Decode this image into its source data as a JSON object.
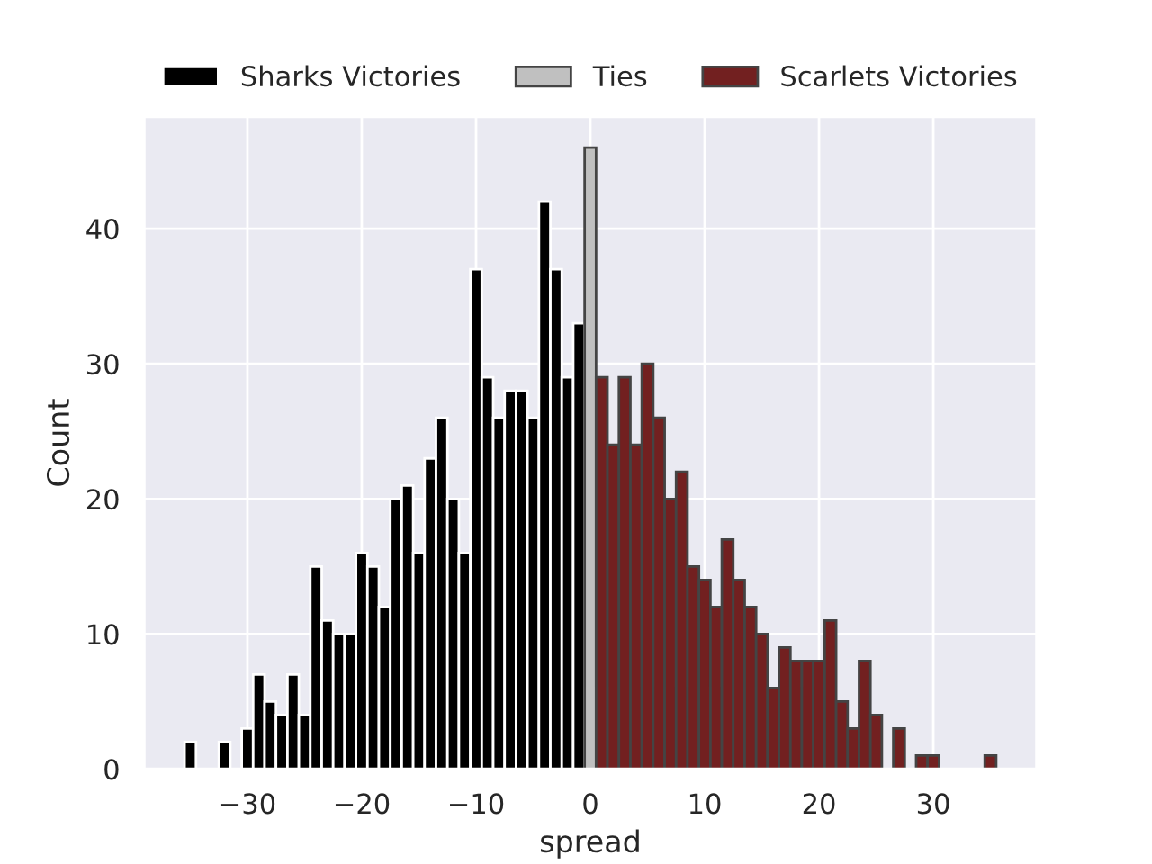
{
  "chart_data": {
    "type": "histogram",
    "xlabel": "spread",
    "ylabel": "Count",
    "bins": [
      -35.5,
      -34.5,
      -33.5,
      -32.5,
      -31.5,
      -30.5,
      -29.5,
      -28.5,
      -27.5,
      -26.5,
      -25.5,
      -24.5,
      -23.5,
      -22.5,
      -21.5,
      -20.5,
      -19.5,
      -18.5,
      -17.5,
      -16.5,
      -15.5,
      -14.5,
      -13.5,
      -12.5,
      -11.5,
      -10.5,
      -9.5,
      -8.5,
      -7.5,
      -6.5,
      -5.5,
      -4.5,
      -3.5,
      -2.5,
      -1.5,
      -0.5,
      0.5,
      1.5,
      2.5,
      3.5,
      4.5,
      5.5,
      6.5,
      7.5,
      8.5,
      9.5,
      10.5,
      11.5,
      12.5,
      13.5,
      14.5,
      15.5,
      16.5,
      17.5,
      18.5,
      19.5,
      20.5,
      21.5,
      22.5,
      23.5,
      24.5,
      25.5,
      26.5,
      27.5,
      28.5,
      29.5,
      30.5,
      31.5,
      32.5,
      33.5,
      34.5,
      35.5
    ],
    "series": [
      {
        "name": "Sharks Victories",
        "color": "#000000",
        "values": [
          2,
          0,
          0,
          2,
          0,
          3,
          7,
          5,
          4,
          7,
          4,
          15,
          11,
          10,
          10,
          16,
          15,
          12,
          20,
          21,
          16,
          23,
          26,
          20,
          16,
          37,
          29,
          26,
          28,
          28,
          26,
          42,
          37,
          29,
          33,
          null,
          null,
          null,
          null,
          null,
          null,
          null,
          null,
          null,
          null,
          null,
          null,
          null,
          null,
          null,
          null,
          null,
          null,
          null,
          null,
          null,
          null,
          null,
          null,
          null,
          null,
          null,
          null,
          null,
          null,
          null,
          null,
          null,
          null,
          null,
          null
        ]
      },
      {
        "name": "Ties",
        "color": "#c0c0c0",
        "values": [
          null,
          null,
          null,
          null,
          null,
          null,
          null,
          null,
          null,
          null,
          null,
          null,
          null,
          null,
          null,
          null,
          null,
          null,
          null,
          null,
          null,
          null,
          null,
          null,
          null,
          null,
          null,
          null,
          null,
          null,
          null,
          null,
          null,
          null,
          null,
          46,
          null,
          null,
          null,
          null,
          null,
          null,
          null,
          null,
          null,
          null,
          null,
          null,
          null,
          null,
          null,
          null,
          null,
          null,
          null,
          null,
          null,
          null,
          null,
          null,
          null,
          null,
          null,
          null,
          null,
          null,
          null,
          null,
          null,
          null,
          null
        ]
      },
      {
        "name": "Scarlets Victories",
        "color": "#722020",
        "values": [
          null,
          null,
          null,
          null,
          null,
          null,
          null,
          null,
          null,
          null,
          null,
          null,
          null,
          null,
          null,
          null,
          null,
          null,
          null,
          null,
          null,
          null,
          null,
          null,
          null,
          null,
          null,
          null,
          null,
          null,
          null,
          null,
          null,
          null,
          null,
          null,
          29,
          24,
          29,
          24,
          30,
          26,
          20,
          22,
          15,
          14,
          12,
          17,
          14,
          12,
          10,
          6,
          9,
          8,
          8,
          8,
          11,
          5,
          3,
          8,
          4,
          0,
          3,
          0,
          1,
          1,
          0,
          0,
          0,
          0,
          1
        ]
      }
    ],
    "xlim": [
      -39.05,
      39.05
    ],
    "xticks": [
      {
        "value": -30,
        "label": "−30"
      },
      {
        "value": -20,
        "label": "−20"
      },
      {
        "value": -10,
        "label": "−10"
      },
      0,
      10,
      20,
      30
    ],
    "ylim": [
      0,
      48.3
    ],
    "yticks": [
      0,
      10,
      20,
      30,
      40
    ],
    "grid": true,
    "legend": "top"
  }
}
